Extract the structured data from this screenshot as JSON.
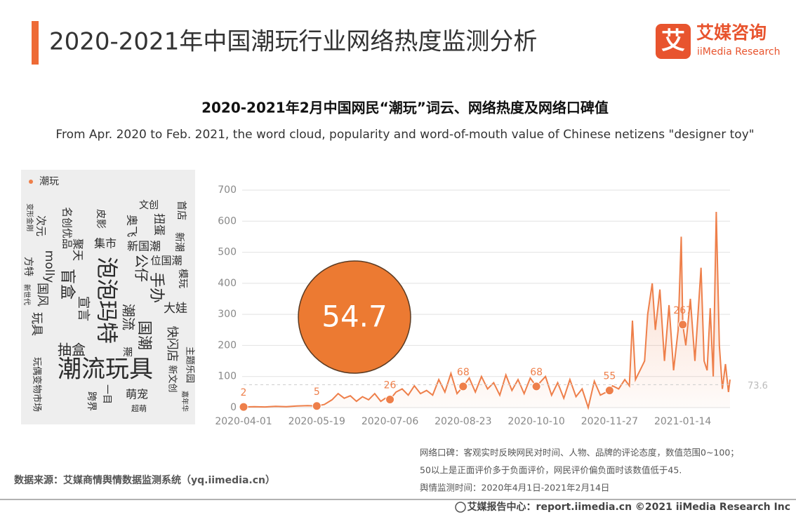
{
  "header": {
    "title": "2020-2021年中国潮玩行业网络热度监测分析",
    "logo_cn": "艾媒咨询",
    "logo_en": "iiMedia Research",
    "logo_icon": "艾"
  },
  "chart_data": {
    "type": "line",
    "title": "2020-2021年2月中国网民“潮玩”词云、网络热度及网络口碑值",
    "subtitle": "From Apr. 2020 to Feb. 2021, the word cloud, popularity and word-of-mouth value of Chinese netizens \"designer toy\"",
    "x": [
      "2020-04-01",
      "2020-04-08",
      "2020-04-15",
      "2020-04-22",
      "2020-04-29",
      "2020-05-06",
      "2020-05-13",
      "2020-05-19",
      "2020-05-24",
      "2020-05-29",
      "2020-06-02",
      "2020-06-06",
      "2020-06-10",
      "2020-06-14",
      "2020-06-18",
      "2020-06-22",
      "2020-06-26",
      "2020-06-30",
      "2020-07-03",
      "2020-07-06",
      "2020-07-10",
      "2020-07-14",
      "2020-07-18",
      "2020-07-22",
      "2020-07-26",
      "2020-07-30",
      "2020-08-03",
      "2020-08-07",
      "2020-08-11",
      "2020-08-15",
      "2020-08-19",
      "2020-08-23",
      "2020-08-27",
      "2020-08-31",
      "2020-09-04",
      "2020-09-08",
      "2020-09-12",
      "2020-09-16",
      "2020-09-20",
      "2020-09-24",
      "2020-09-28",
      "2020-10-02",
      "2020-10-06",
      "2020-10-10",
      "2020-10-16",
      "2020-10-20",
      "2020-10-24",
      "2020-10-28",
      "2020-11-01",
      "2020-11-05",
      "2020-11-09",
      "2020-11-13",
      "2020-11-17",
      "2020-11-21",
      "2020-11-27",
      "2020-11-29",
      "2020-12-03",
      "2020-12-07",
      "2020-12-10",
      "2020-12-12",
      "2020-12-14",
      "2020-12-17",
      "2020-12-20",
      "2020-12-22",
      "2020-12-25",
      "2020-12-27",
      "2020-12-30",
      "2021-01-02",
      "2021-01-05",
      "2021-01-08",
      "2021-01-11",
      "2021-01-13",
      "2021-01-14",
      "2021-01-16",
      "2021-01-19",
      "2021-01-22",
      "2021-01-24",
      "2021-01-26",
      "2021-01-28",
      "2021-01-30",
      "2021-02-01",
      "2021-02-03",
      "2021-02-05",
      "2021-02-07",
      "2021-02-09",
      "2021-02-11",
      "2021-02-13",
      "2021-02-14"
    ],
    "series": [
      {
        "name": "潮玩",
        "color": "#ee7f4a",
        "values": [
          2,
          3,
          2,
          4,
          3,
          5,
          6,
          5,
          10,
          25,
          45,
          30,
          38,
          20,
          35,
          25,
          45,
          20,
          30,
          26,
          50,
          60,
          40,
          70,
          45,
          55,
          40,
          90,
          50,
          110,
          45,
          68,
          95,
          50,
          100,
          60,
          80,
          40,
          105,
          55,
          90,
          45,
          95,
          68,
          100,
          40,
          80,
          30,
          90,
          35,
          60,
          0,
          85,
          40,
          55,
          70,
          60,
          90,
          70,
          280,
          90,
          120,
          150,
          300,
          400,
          250,
          380,
          150,
          330,
          120,
          250,
          550,
          267,
          200,
          350,
          150,
          300,
          450,
          150,
          120,
          320,
          100,
          630,
          200,
          60,
          140,
          50,
          90
        ]
      }
    ],
    "highlights": {
      "x": [
        "2020-04-01",
        "2020-05-19",
        "2020-07-06",
        "2020-08-23",
        "2020-10-10",
        "2020-11-27",
        "2021-01-14"
      ],
      "values": [
        2,
        5,
        26,
        68,
        68,
        55,
        267
      ]
    },
    "average": 73.6,
    "word_of_mouth": 54.7,
    "xlim": [
      "2020-04-01",
      "2021-02-14"
    ],
    "xticks": [
      "2020-04-01",
      "2020-05-19",
      "2020-07-06",
      "2020-08-23",
      "2020-10-10",
      "2020-11-27",
      "2021-01-14"
    ],
    "ylim": [
      0,
      700
    ],
    "yticks": [
      0,
      100,
      200,
      300,
      400,
      500,
      600,
      700
    ],
    "grid": true
  },
  "word_cloud": {
    "legend": "潮玩",
    "words": [
      "潮流玩具",
      "泡泡玛特",
      "盲盒",
      "手办",
      "国潮",
      "潮流",
      "抽盒",
      "玩具",
      "公仔",
      "大娃",
      "快闪店",
      "新国潮",
      "位国潮",
      "扭蛋",
      "文创",
      "奥飞",
      "名创优品",
      "次元",
      "molly",
      "聚天",
      "集市",
      "国风",
      "萌宠",
      "跨界",
      "超萌",
      "方特",
      "皮影",
      "首店",
      "新潮",
      "模玩",
      "玩偶变物市场",
      "新世代",
      "变形金刚",
      "主题乐园",
      "新文创",
      "嘉年华",
      "潮",
      "一目",
      "宣言"
    ]
  },
  "notes": [
    "网络口碑：客观实时反映网民对时间、人物、品牌的评论态度，数值范围0~100；",
    "50以上是正面评价多于负面评价，网民评价偏负面时该数值低于45.",
    "舆情监测时间：2020年4月1日-2021年2月14日"
  ],
  "source": "数据来源：艾媒商情舆情数据监测系统（yq.iimedia.cn）",
  "footer": "艾媒报告中心：report.iimedia.cn  ©2021  iiMedia Research  Inc"
}
